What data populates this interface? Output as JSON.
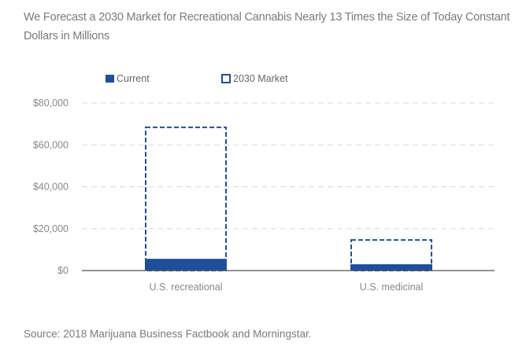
{
  "title": "We Forecast a 2030 Market for Recreational Cannabis Nearly 13 Times the Size of Today Constant Dollars in Millions",
  "source": "Source: 2018 Marijuana Business Factbook and Morningstar.",
  "colors": {
    "bar": "#1f4e9c",
    "grid": "#d9d9d9",
    "axis": "#555555"
  },
  "chart_data": {
    "type": "bar",
    "title": "We Forecast a 2030 Market for Recreational Cannabis Nearly 13 Times the Size of Today Constant Dollars in Millions",
    "categories": [
      "U.S. recreational",
      "U.S. medicinal"
    ],
    "series": [
      {
        "name": "Current",
        "style": "solid",
        "values": [
          5600,
          3000
        ]
      },
      {
        "name": "2030 Market",
        "style": "dashed-outline",
        "values": [
          68400,
          14600
        ]
      }
    ],
    "xlabel": "",
    "ylabel": "",
    "ylim": [
      0,
      80000
    ],
    "yticks": [
      0,
      20000,
      40000,
      60000,
      80000
    ],
    "ytick_labels": [
      "$0",
      "$20,000",
      "$40,000",
      "$60,000",
      "$80,000"
    ],
    "grid": true,
    "legend": "top-left"
  }
}
